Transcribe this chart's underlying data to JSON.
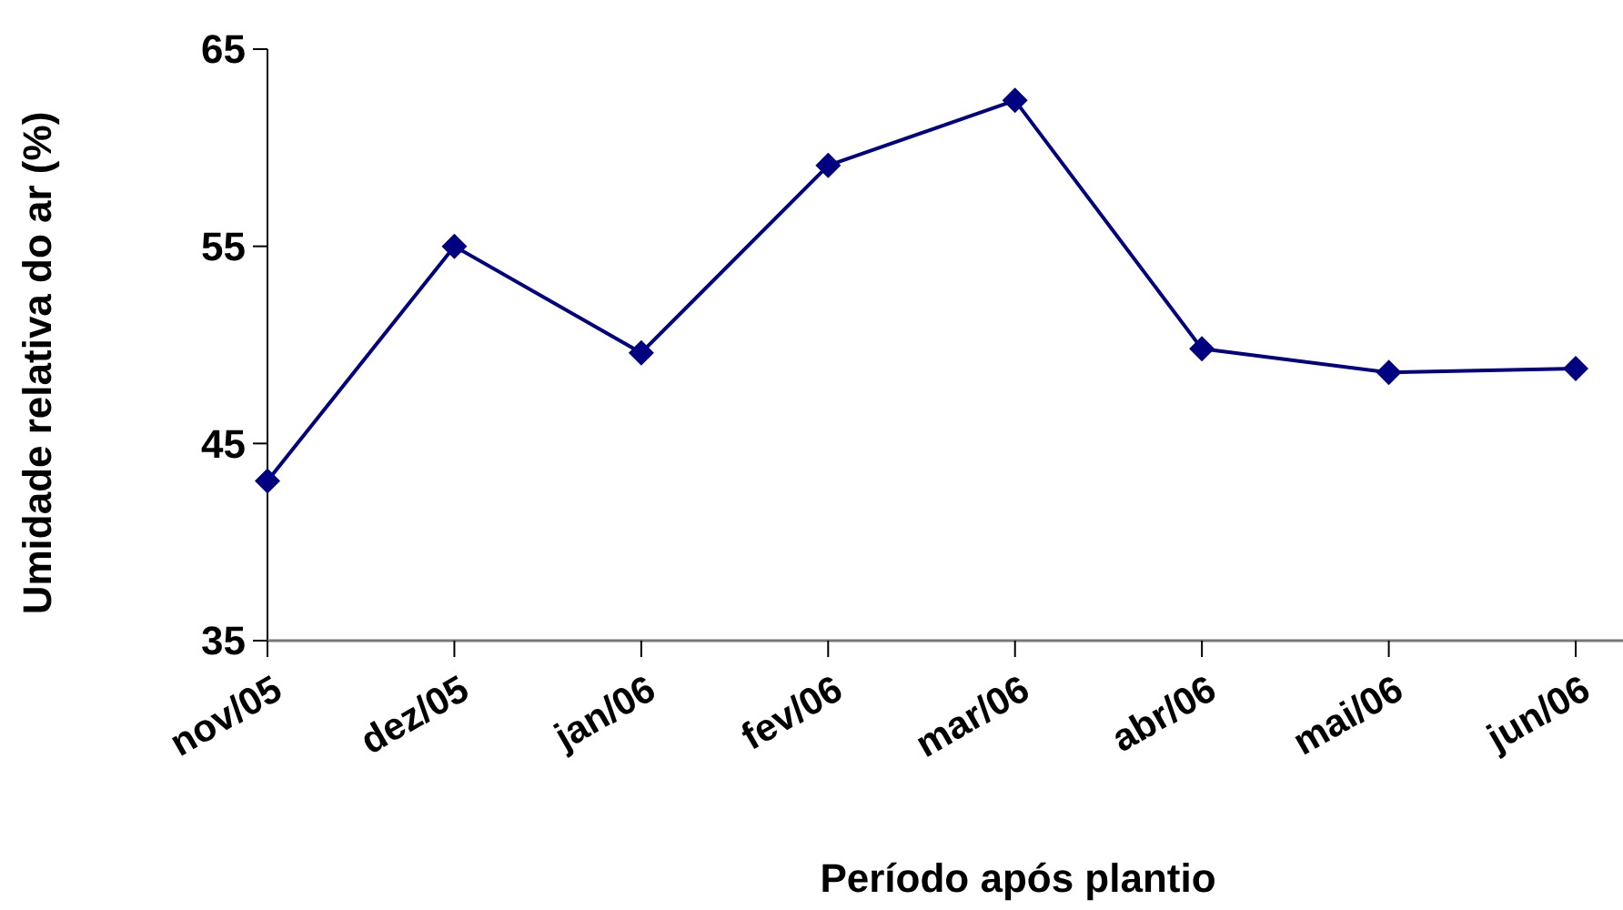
{
  "chart_data": {
    "type": "line",
    "xlabel": "Período após plantio",
    "ylabel": "Umidade relativa do ar (%)",
    "categories": [
      "nov/05",
      "dez/05",
      "jan/06",
      "fev/06",
      "mar/06",
      "abr/06",
      "mai/06",
      "jun/06"
    ],
    "series": [
      {
        "color": "#000080",
        "values": [
          43.1,
          55.0,
          49.6,
          59.1,
          62.4,
          49.8,
          48.6,
          48.8
        ]
      }
    ],
    "ylim": [
      35,
      65
    ],
    "yticks": [
      35,
      45,
      55,
      65
    ],
    "grid": false,
    "marker": "diamond",
    "line_style": "solid"
  }
}
